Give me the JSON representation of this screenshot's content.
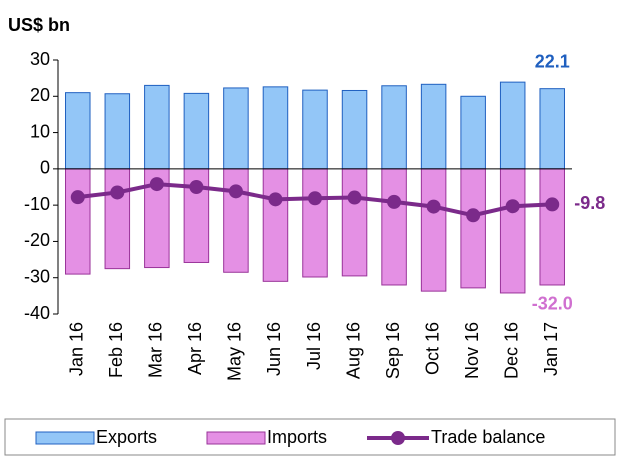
{
  "chart_data": {
    "type": "bar_line",
    "y_label": "US$ bn",
    "categories": [
      "Jan 16",
      "Feb 16",
      "Mar 16",
      "Apr 16",
      "May 16",
      "Jun 16",
      "Jul 16",
      "Aug 16",
      "Sep 16",
      "Oct 16",
      "Nov 16",
      "Dec 16",
      "Jan 17"
    ],
    "series": [
      {
        "name": "Exports",
        "type": "bar",
        "color": "#93c6f7",
        "stroke": "#2060c0",
        "values": [
          21,
          20.7,
          23,
          20.8,
          22.3,
          22.6,
          21.7,
          21.6,
          22.9,
          23.3,
          20,
          23.9,
          22.1
        ],
        "value_labels": [
          null,
          null,
          null,
          null,
          null,
          null,
          null,
          null,
          null,
          null,
          null,
          null,
          "22.1"
        ],
        "label_color": "#1f5fbf"
      },
      {
        "name": "Imports",
        "type": "bar",
        "color": "#e490e4",
        "stroke": "#993399",
        "values": [
          -29,
          -27.5,
          -27.2,
          -25.8,
          -28.5,
          -31,
          -29.8,
          -29.5,
          -32,
          -33.7,
          -32.8,
          -34.2,
          -32.0
        ],
        "value_labels": [
          null,
          null,
          null,
          null,
          null,
          null,
          null,
          null,
          null,
          null,
          null,
          null,
          "-32.0"
        ],
        "label_color": "#d070d0"
      },
      {
        "name": "Trade balance",
        "type": "line",
        "color": "#7b2a8a",
        "values": [
          -7.8,
          -6.5,
          -4.2,
          -5,
          -6.2,
          -8.4,
          -8.1,
          -7.9,
          -9.1,
          -10.4,
          -12.8,
          -10.3,
          -9.8
        ],
        "value_labels": [
          null,
          null,
          null,
          null,
          null,
          null,
          null,
          null,
          null,
          null,
          null,
          null,
          "-9.8"
        ],
        "label_color": "#7b2a8a"
      }
    ],
    "ylim": [
      -40,
      30
    ],
    "yticks": [
      30,
      20,
      10,
      0,
      -10,
      -20,
      -30,
      -40
    ],
    "grid": false,
    "legend": "bottom"
  }
}
